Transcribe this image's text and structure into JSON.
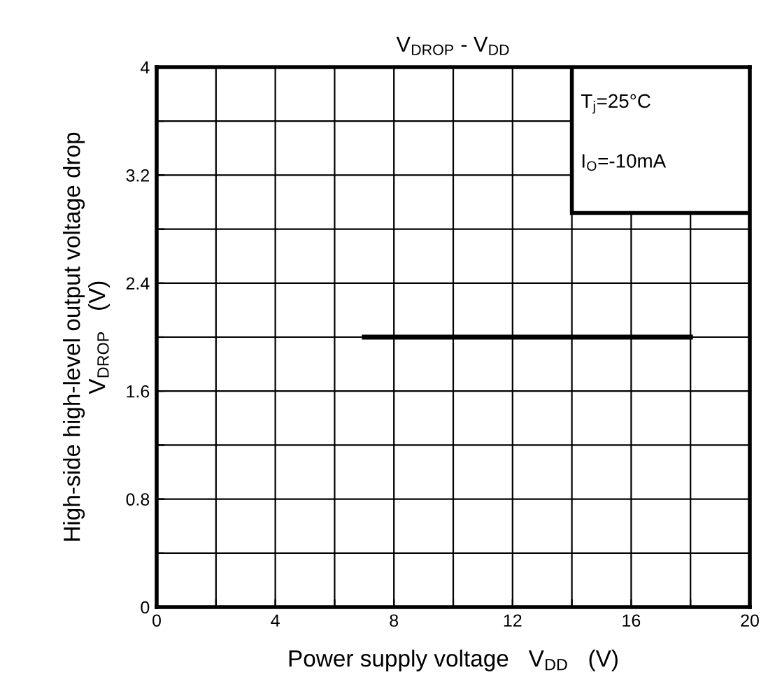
{
  "chart_data": {
    "type": "line",
    "title": "V$_{DROP}$ - V$_{DD}$",
    "xlabel": "Power supply voltage   V$_{DD}$   (V)",
    "ylabel": "High-side high-level output voltage drop\nV$_{DROP}$   (V)",
    "annotations": [
      "T$_{j}$=25°C",
      "I$_{O}$=-10mA"
    ],
    "series": [
      {
        "color": "#000000",
        "x": [
          7,
          18
        ],
        "values": [
          2.0,
          2.0
        ]
      }
    ],
    "xlim": [
      0,
      20
    ],
    "xticks": [
      0,
      {
        "value": 2,
        "label": null
      },
      4,
      {
        "value": 6,
        "label": null
      },
      8,
      {
        "value": 10,
        "label": null
      },
      12,
      {
        "value": 14,
        "label": null
      },
      16,
      {
        "value": 18,
        "label": null
      },
      20
    ],
    "ylim": [
      0,
      4
    ],
    "yticks": [
      0,
      {
        "value": 0.4,
        "label": null
      },
      0.8,
      {
        "value": 1.2,
        "label": null
      },
      1.6,
      {
        "value": 2.0,
        "label": null
      },
      2.4,
      {
        "value": 2.8,
        "label": null
      },
      3.2,
      {
        "value": 3.6,
        "label": null
      },
      4
    ],
    "grid": true,
    "marker": "none",
    "line_style": "solid",
    "legend": false
  }
}
